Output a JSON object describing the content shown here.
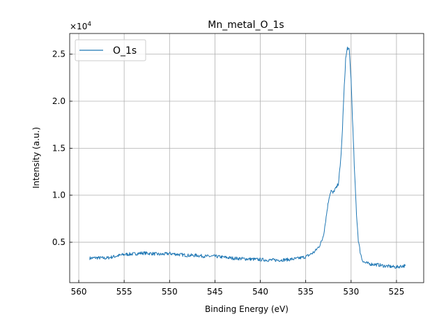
{
  "chart_data": {
    "type": "line",
    "title": "Mn_metal_O_1s",
    "xlabel": "Binding Energy (eV)",
    "ylabel": "Intensity (a.u.)",
    "y_scale_label": "×10",
    "y_scale_exponent": "4",
    "x_inverted": true,
    "xlim": [
      561,
      522
    ],
    "ylim": [
      700,
      27200
    ],
    "grid": true,
    "legend": "top-left",
    "x_ticks": [
      560,
      555,
      550,
      545,
      540,
      535,
      530,
      525
    ],
    "y_ticks": [
      5000,
      10000,
      15000,
      20000,
      25000
    ],
    "y_tick_labels": [
      "0.5",
      "1.0",
      "1.5",
      "2.0",
      "2.5"
    ],
    "series": [
      {
        "name": "O_1s",
        "color": "#1f77b4",
        "x": [
          558.8,
          558.0,
          557.0,
          556.0,
          555.0,
          554.0,
          553.0,
          552.0,
          551.0,
          550.0,
          549.0,
          548.0,
          547.0,
          546.0,
          545.0,
          544.0,
          543.0,
          542.0,
          541.0,
          540.0,
          539.0,
          538.0,
          537.0,
          536.0,
          535.0,
          534.5,
          534.0,
          533.5,
          533.2,
          533.0,
          532.8,
          532.6,
          532.4,
          532.2,
          532.0,
          531.8,
          531.6,
          531.4,
          531.2,
          531.0,
          530.8,
          530.6,
          530.4,
          530.2,
          530.0,
          529.8,
          529.6,
          529.4,
          529.2,
          529.0,
          528.8,
          528.6,
          528.4,
          528.2,
          528.0,
          527.5,
          527.0,
          526.5,
          526.0,
          525.5,
          525.0,
          524.5,
          524.0
        ],
        "y": [
          3300,
          3350,
          3300,
          3500,
          3700,
          3750,
          3850,
          3800,
          3700,
          3800,
          3700,
          3600,
          3600,
          3500,
          3500,
          3400,
          3300,
          3250,
          3200,
          3150,
          3100,
          3100,
          3150,
          3250,
          3450,
          3700,
          4000,
          4600,
          5200,
          6000,
          7300,
          8700,
          9900,
          10500,
          10200,
          10600,
          10800,
          11300,
          13000,
          16000,
          20500,
          24500,
          25700,
          25400,
          22300,
          17000,
          12000,
          8000,
          5200,
          4000,
          3200,
          2900,
          2800,
          2750,
          2700,
          2650,
          2600,
          2500,
          2450,
          2400,
          2350,
          2450,
          2500
        ]
      }
    ]
  }
}
